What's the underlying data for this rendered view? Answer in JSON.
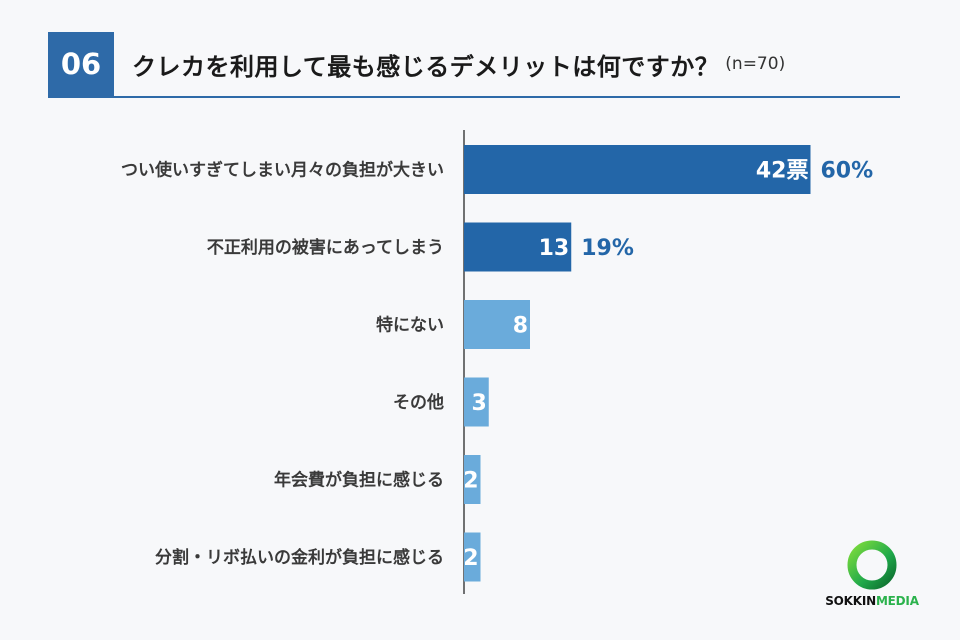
{
  "question": {
    "number": "06",
    "title": "クレカを利用して最も感じるデメリットは何ですか？",
    "sample": "(n=70)"
  },
  "colors": {
    "primary": "#2366a8",
    "secondary": "#6aabdb",
    "accent_text": "#2366a8",
    "header_rule": "#2e6aa8"
  },
  "chart_data": {
    "type": "bar",
    "orientation": "horizontal",
    "categories": [
      "つい使いすぎてしまい月々の負担が大きい",
      "不正利用の被害にあってしまう",
      "特にない",
      "その他",
      "年会費が負担に感じる",
      "分割・リボ払いの金利が負担に感じる"
    ],
    "values": [
      42,
      13,
      8,
      3,
      2,
      2
    ],
    "value_labels": [
      "42票",
      "13",
      "8",
      "3",
      "2",
      "2"
    ],
    "percent_labels": [
      "60%",
      "19%",
      "",
      "",
      "",
      ""
    ],
    "highlight": [
      true,
      true,
      false,
      false,
      false,
      false
    ],
    "xlim": [
      0,
      56
    ],
    "grid": false
  },
  "logo": {
    "brand": "SOKKIN",
    "brand_accent": "MEDIA",
    "icon": "green-ring-logo"
  }
}
